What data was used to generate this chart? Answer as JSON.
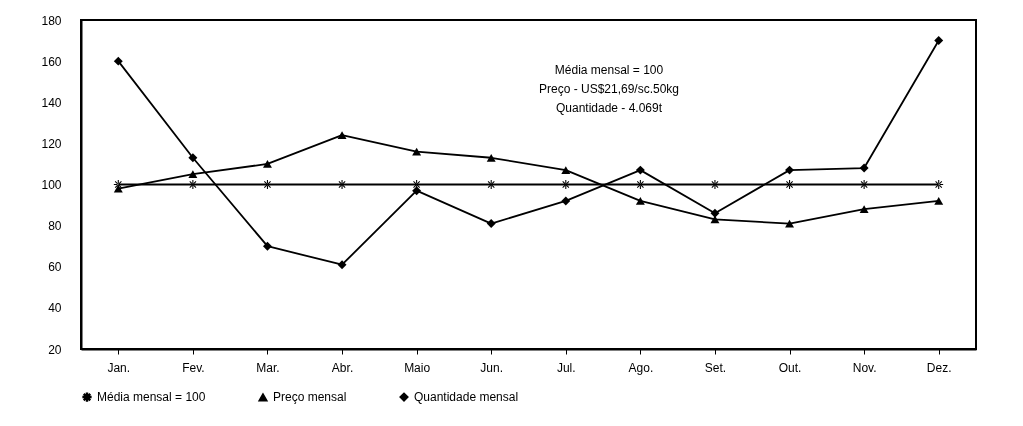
{
  "chart_data": {
    "type": "line",
    "categories": [
      "Jan.",
      "Fev.",
      "Mar.",
      "Abr.",
      "Maio",
      "Jun.",
      "Jul.",
      "Ago.",
      "Set.",
      "Out.",
      "Nov.",
      "Dez."
    ],
    "series": [
      {
        "name": "Média mensal = 100",
        "color": "#000000",
        "marker": "cross",
        "values": [
          100,
          100,
          100,
          100,
          100,
          100,
          100,
          100,
          100,
          100,
          100,
          100
        ]
      },
      {
        "name": "Preço mensal",
        "color": "#000000",
        "marker": "triangle",
        "values": [
          98,
          105,
          110,
          124,
          116,
          113,
          107,
          92,
          83,
          81,
          88,
          92
        ]
      },
      {
        "name": "Quantidade mensal",
        "color": "#000000",
        "marker": "diamond",
        "values": [
          160,
          113,
          70,
          61,
          97,
          81,
          92,
          107,
          86,
          107,
          108,
          170
        ]
      }
    ],
    "ylim": [
      20,
      180
    ],
    "yticks": [
      20,
      40,
      60,
      80,
      100,
      120,
      140,
      160,
      180
    ],
    "grid": false,
    "legend": "bottom",
    "line_style": "solid",
    "annotations": [
      "Média mensal = 100",
      "Preço - US$21,69/sc.50kg",
      "Quantidade - 4.069t"
    ]
  }
}
